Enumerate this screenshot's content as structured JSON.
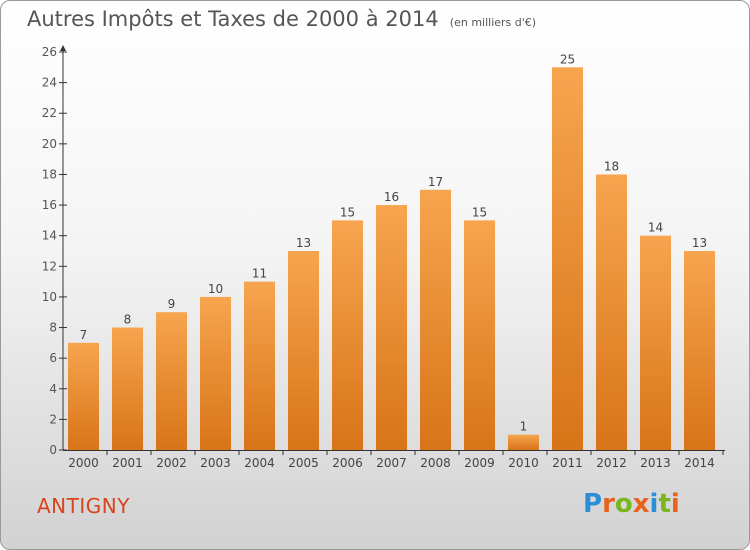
{
  "header": {
    "title": "Autres Impôts et Taxes de 2000 à 2014",
    "unit": "(en milliers d'€)"
  },
  "footer": {
    "commune": "ANTIGNY",
    "brand": "Proxiti",
    "brand_colors": [
      "#2a8fd6",
      "#e8641e",
      "#7ab51d",
      "#e8641e",
      "#2a8fd6",
      "#7ab51d",
      "#e8641e"
    ]
  },
  "colors": {
    "bar_top": "#f6a54e",
    "bar_bottom": "#d87418",
    "axis": "#333333",
    "text": "#555555",
    "commune": "#d9441f"
  },
  "chart_data": {
    "type": "bar",
    "title": "Autres Impôts et Taxes de 2000 à 2014",
    "subtitle": "(en milliers d'€)",
    "xlabel": "",
    "ylabel": "",
    "categories": [
      "2000",
      "2001",
      "2002",
      "2003",
      "2004",
      "2005",
      "2006",
      "2007",
      "2008",
      "2009",
      "2010",
      "2011",
      "2012",
      "2013",
      "2014"
    ],
    "values": [
      7,
      8,
      9,
      10,
      11,
      13,
      15,
      16,
      17,
      15,
      1,
      25,
      18,
      14,
      13
    ],
    "ylim": [
      0,
      26
    ],
    "yticks": [
      0,
      2,
      4,
      6,
      8,
      10,
      12,
      14,
      16,
      18,
      20,
      22,
      24,
      26
    ],
    "grid": false,
    "legend": "none"
  }
}
